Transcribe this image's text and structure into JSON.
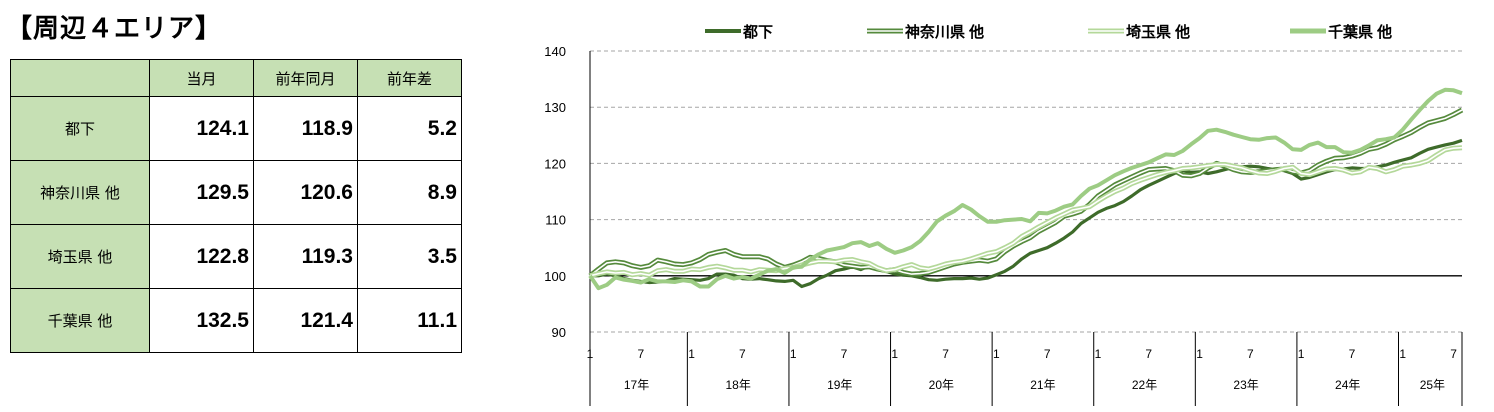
{
  "title": "【周辺４エリア】",
  "table": {
    "headers": [
      "",
      "当月",
      "前年同月",
      "前年差"
    ],
    "rows": [
      {
        "label": "都下",
        "values": [
          "124.1",
          "118.9",
          "5.2"
        ]
      },
      {
        "label": "神奈川県 他",
        "values": [
          "129.5",
          "120.6",
          "8.9"
        ]
      },
      {
        "label": "埼玉県 他",
        "values": [
          "122.8",
          "119.3",
          "3.5"
        ]
      },
      {
        "label": "千葉県 他",
        "values": [
          "132.5",
          "121.4",
          "11.1"
        ]
      }
    ]
  },
  "chart_data": {
    "type": "line",
    "ylim": [
      90,
      140
    ],
    "yticks": [
      90,
      100,
      110,
      120,
      130,
      140
    ],
    "reference_line": 100,
    "grid": "dashed horizontal",
    "legend_position": "top",
    "x_month_ticks": [
      "1",
      "7"
    ],
    "years": [
      "17年",
      "18年",
      "19年",
      "20年",
      "21年",
      "22年",
      "23年",
      "24年",
      "25年"
    ],
    "x_start": "2017-01",
    "x_end": "2025-07",
    "x_step": "month",
    "colors": {
      "都下": "#3e6b2a",
      "神奈川県 他": "#558a3c",
      "埼玉県 他": "#b4d89a",
      "千葉県 他": "#9dcc84"
    },
    "series": [
      {
        "name": "都下",
        "style": "solid",
        "values": [
          100,
          100,
          100.3,
          100,
          99.5,
          99.2,
          99,
          98.8,
          98.9,
          99.1,
          99.5,
          99.4,
          99.3,
          99.2,
          99.5,
          100.3,
          100.3,
          100.1,
          99.5,
          99.4,
          99.5,
          99.3,
          99.1,
          99,
          99.2,
          98.1,
          98.6,
          99.5,
          100.1,
          100.9,
          101.2,
          101.6,
          101.1,
          101.8,
          101.3,
          100.8,
          100.3,
          100.1,
          100,
          99.7,
          99.3,
          99.2,
          99.4,
          99.5,
          99.5,
          99.6,
          99.4,
          99.6,
          100.2,
          100.8,
          101.7,
          103,
          104,
          104.5,
          105,
          105.8,
          106.7,
          107.8,
          109.3,
          110.3,
          111.3,
          112,
          112.5,
          113.2,
          114.2,
          115.3,
          116.1,
          116.8,
          117.5,
          118.2,
          118.7,
          118.4,
          118.5,
          118.2,
          118.5,
          118.9,
          119.3,
          119.4,
          119.5,
          119.4,
          119.1,
          118.9,
          118.7,
          118.2,
          117.2,
          117.5,
          118,
          118.5,
          118.9,
          119,
          119.2,
          119.1,
          119.1,
          119.4,
          119.7,
          120.2,
          120.6,
          121,
          121.8,
          122.5,
          122.9,
          123.3,
          123.6,
          124.1
        ]
      },
      {
        "name": "神奈川県 他",
        "style": "double",
        "values": [
          100,
          101.2,
          102.3,
          102.5,
          102.3,
          101.8,
          101.5,
          101.8,
          102.8,
          102.5,
          102.1,
          102,
          102.3,
          102.9,
          103.8,
          104.2,
          104.5,
          103.8,
          103.4,
          103.4,
          103.4,
          103,
          102.1,
          101.5,
          101.9,
          102.5,
          103.3,
          103.1,
          102.7,
          102.5,
          101.9,
          101.7,
          101.5,
          101.6,
          101.2,
          100.9,
          101.1,
          100.6,
          100.3,
          100.4,
          100.6,
          101.1,
          101.6,
          102.1,
          102.4,
          102.6,
          102.8,
          102.6,
          103,
          104.3,
          105.3,
          106.1,
          106.8,
          107.9,
          108.7,
          109.5,
          110.6,
          111,
          111.5,
          112.7,
          114.2,
          115.2,
          116.2,
          116.9,
          117.6,
          118.3,
          118.9,
          119,
          119.1,
          118.7,
          117.9,
          117.8,
          118.2,
          119.2,
          120,
          119.5,
          118.9,
          118.5,
          118.4,
          118.5,
          118.7,
          118.9,
          119,
          118.5,
          118.3,
          118.7,
          119.7,
          120.4,
          120.9,
          121,
          121.3,
          121.8,
          122.5,
          122.8,
          123.4,
          124.2,
          124.8,
          125.5,
          126.4,
          127.2,
          127.6,
          128,
          128.7,
          129.5
        ]
      },
      {
        "name": "埼玉県 他",
        "style": "double",
        "values": [
          100,
          100.4,
          100.7,
          100.5,
          100.6,
          100.2,
          100.4,
          100.1,
          100.9,
          101.1,
          100.8,
          100.8,
          101.2,
          101.1,
          101.5,
          101.7,
          101.4,
          101,
          101,
          100.7,
          101.1,
          101,
          100.9,
          101.3,
          101.5,
          101.9,
          102.3,
          102.6,
          102.6,
          102.5,
          102.8,
          102.9,
          102.5,
          102.2,
          101.4,
          100.9,
          101.1,
          101.6,
          102,
          101.4,
          101.2,
          101.6,
          102.1,
          102.4,
          102.6,
          103,
          103.5,
          104,
          104.3,
          105,
          105.8,
          107,
          107.8,
          108.7,
          109.5,
          110.3,
          111,
          111.7,
          112,
          112.3,
          113.3,
          114.2,
          115,
          115.6,
          116.4,
          117,
          117.5,
          118,
          118.4,
          118.7,
          119.1,
          119.2,
          119.4,
          119.6,
          119.8,
          119.8,
          119.5,
          119.2,
          118.7,
          118.3,
          118.2,
          118.6,
          119.1,
          119.3,
          118.2,
          118,
          118.5,
          119,
          119.1,
          118.8,
          118.3,
          118.5,
          119.3,
          119.1,
          118.5,
          118.9,
          119.5,
          119.7,
          120,
          120.5,
          121.5,
          122.4,
          122.7,
          122.8
        ]
      },
      {
        "name": "千葉県 他",
        "style": "solid",
        "values": [
          100,
          97.8,
          98.4,
          99.7,
          99.3,
          99.1,
          98.8,
          99.4,
          99,
          99,
          98.9,
          99.2,
          99,
          98.1,
          98.1,
          99.4,
          100,
          99.5,
          99.8,
          99.5,
          100.2,
          100.9,
          101.2,
          100.5,
          101.5,
          101.6,
          102.9,
          103.8,
          104.5,
          104.8,
          105.1,
          105.8,
          106,
          105.3,
          105.8,
          104.8,
          104.1,
          104.5,
          105.1,
          106.2,
          107.8,
          109.7,
          110.7,
          111.5,
          112.6,
          111.8,
          110.6,
          109.6,
          109.6,
          109.9,
          110,
          110.1,
          109.7,
          111.2,
          111.1,
          111.6,
          112.3,
          112.7,
          114.2,
          115.5,
          116.1,
          117,
          117.9,
          118.6,
          119.2,
          119.7,
          120.2,
          120.9,
          121.6,
          121.5,
          122.2,
          123.4,
          124.5,
          125.8,
          126,
          125.6,
          125.1,
          124.7,
          124.3,
          124.2,
          124.5,
          124.6,
          123.7,
          122.5,
          122.4,
          123.3,
          123.7,
          122.9,
          122.9,
          122,
          121.9,
          122.4,
          123.2,
          124.1,
          124.3,
          124.6,
          126,
          127.8,
          129.5,
          131.1,
          132.4,
          133.1,
          133,
          132.5
        ]
      }
    ]
  }
}
